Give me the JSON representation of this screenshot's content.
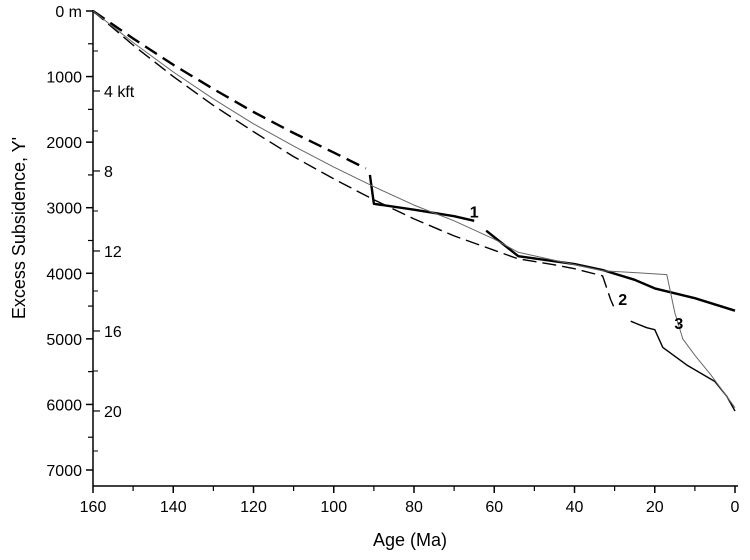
{
  "chart_data": {
    "type": "line",
    "xlabel": "Age (Ma)",
    "ylabel": "Excess Subsidence, Y'",
    "xlim": [
      160,
      0
    ],
    "ylim": [
      0,
      7000
    ],
    "x_reversed": true,
    "y_reversed": true,
    "x_ticks": [
      160,
      140,
      120,
      100,
      80,
      60,
      40,
      20,
      0
    ],
    "y_ticks": [
      {
        "value": 0,
        "label": "0 m"
      },
      {
        "value": 1000,
        "label": "1000"
      },
      {
        "value": 2000,
        "label": "2000"
      },
      {
        "value": 3000,
        "label": "3000"
      },
      {
        "value": 4000,
        "label": "4000"
      },
      {
        "value": 5000,
        "label": "5000"
      },
      {
        "value": 6000,
        "label": "6000"
      },
      {
        "value": 7000,
        "label": "7000"
      }
    ],
    "secondary_y_labels": [
      {
        "value": 1220,
        "label": "4 kft"
      },
      {
        "value": 2440,
        "label": "8"
      },
      {
        "value": 3660,
        "label": "12"
      },
      {
        "value": 4880,
        "label": "16"
      },
      {
        "value": 6100,
        "label": "20"
      }
    ],
    "series": [
      {
        "name": "1",
        "style": "thick",
        "segments": [
          [
            [
              160,
              0
            ],
            [
              150,
              420
            ],
            [
              140,
              820
            ],
            [
              130,
              1190
            ],
            [
              120,
              1540
            ],
            [
              110,
              1860
            ],
            [
              100,
              2160
            ],
            [
              92,
              2400
            ]
          ],
          [
            [
              91,
              2500
            ],
            [
              90,
              2940
            ],
            [
              80,
              3030
            ],
            [
              70,
              3130
            ],
            [
              65,
              3200
            ]
          ],
          [
            [
              62,
              3350
            ],
            [
              54,
              3740
            ],
            [
              40,
              3860
            ],
            [
              33,
              3950
            ],
            [
              25,
              4100
            ],
            [
              20,
              4230
            ],
            [
              10,
              4380
            ],
            [
              0,
              4570
            ]
          ]
        ]
      },
      {
        "name": "2",
        "style": "medium",
        "segments": [
          [
            [
              160,
              0
            ],
            [
              150,
              520
            ],
            [
              140,
              1000
            ],
            [
              130,
              1440
            ],
            [
              120,
              1840
            ],
            [
              110,
              2220
            ],
            [
              100,
              2560
            ],
            [
              90,
              2880
            ],
            [
              80,
              3170
            ],
            [
              70,
              3430
            ],
            [
              60,
              3650
            ],
            [
              54,
              3780
            ],
            [
              45,
              3870
            ],
            [
              40,
              3930
            ],
            [
              33,
              4040
            ],
            [
              31,
              4400
            ],
            [
              30,
              4540
            ]
          ],
          [
            [
              26,
              4730
            ],
            [
              22,
              4830
            ],
            [
              20,
              4860
            ],
            [
              18,
              5130
            ],
            [
              12,
              5400
            ],
            [
              5,
              5650
            ],
            [
              2,
              5880
            ],
            [
              0,
              6100
            ]
          ]
        ]
      },
      {
        "name": "3",
        "style": "thin",
        "segments": [
          [
            [
              160,
              0
            ],
            [
              150,
              480
            ],
            [
              140,
              930
            ],
            [
              130,
              1340
            ],
            [
              120,
              1720
            ],
            [
              110,
              2060
            ],
            [
              100,
              2380
            ],
            [
              90,
              2680
            ],
            [
              80,
              2960
            ],
            [
              70,
              3200
            ],
            [
              60,
              3480
            ],
            [
              54,
              3680
            ],
            [
              45,
              3800
            ],
            [
              33,
              3960
            ],
            [
              25,
              3990
            ],
            [
              17,
              4020
            ],
            [
              15,
              4600
            ],
            [
              13,
              5000
            ],
            [
              10,
              5250
            ],
            [
              6,
              5550
            ],
            [
              3,
              5800
            ],
            [
              0,
              6050
            ]
          ]
        ]
      }
    ],
    "annotations": [
      {
        "text": "1",
        "x": 65,
        "y": 3150
      },
      {
        "text": "2",
        "x": 28,
        "y": 4480
      },
      {
        "text": "3",
        "x": 14,
        "y": 4850
      }
    ]
  }
}
